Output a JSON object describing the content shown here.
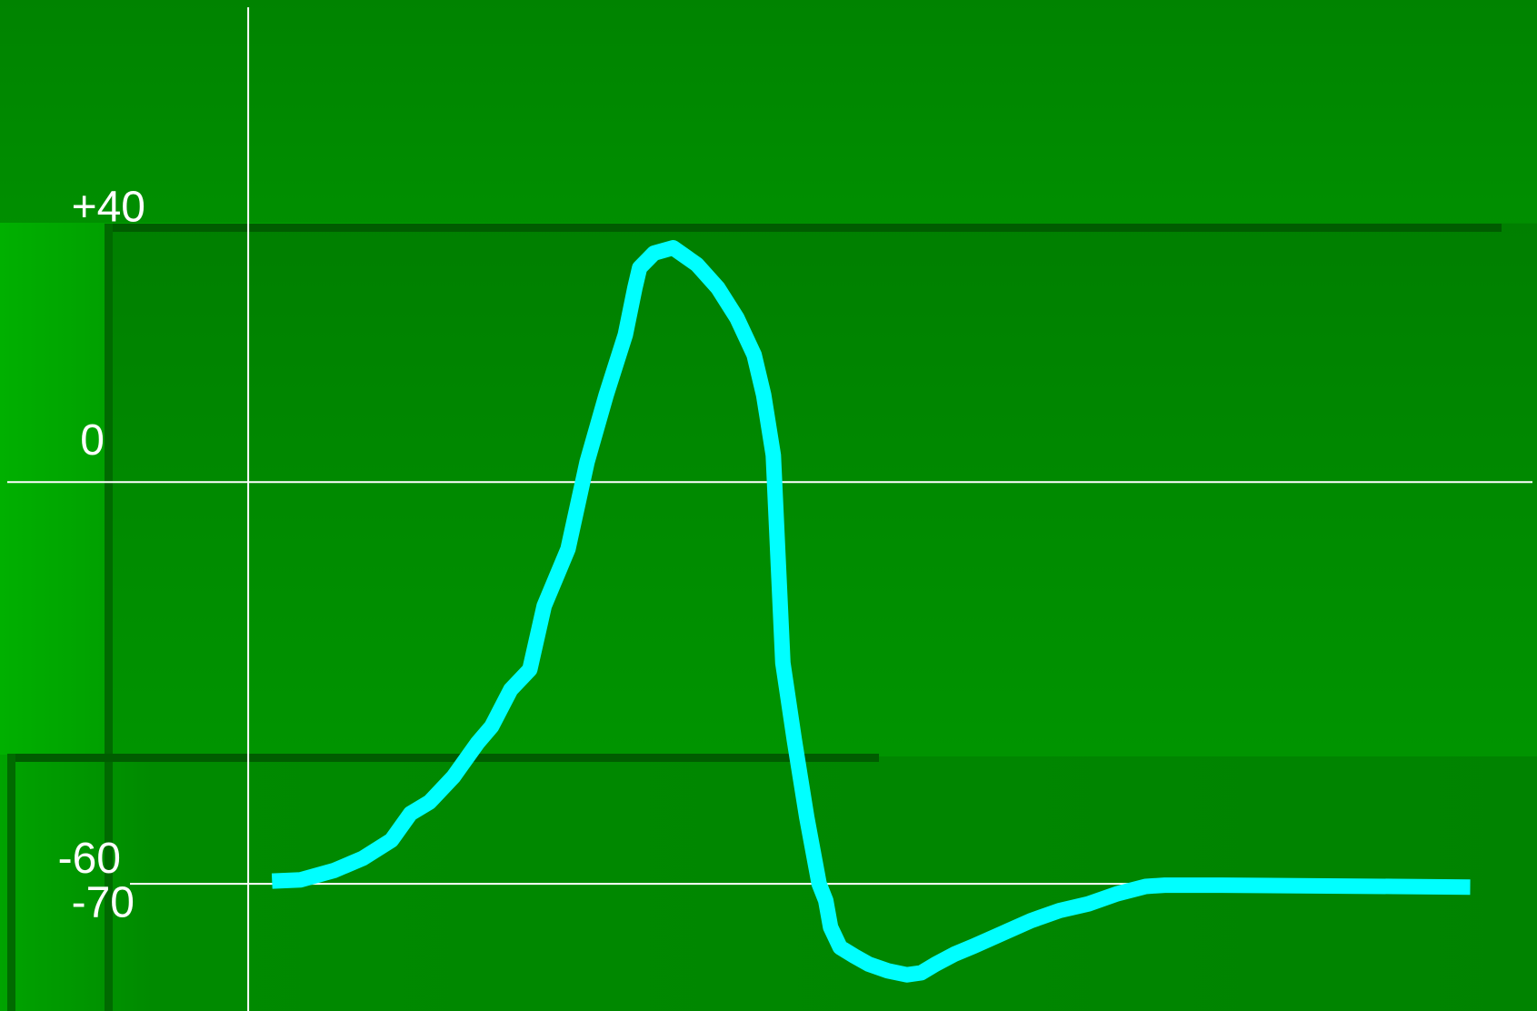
{
  "chart_data": {
    "type": "line",
    "title": "",
    "xlabel": "",
    "ylabel": "",
    "y_ticks": [
      {
        "value": 40,
        "label": "+40"
      },
      {
        "value": 0,
        "label": "0"
      },
      {
        "value": -60,
        "label": "-60"
      },
      {
        "value": -70,
        "label": "-70"
      }
    ],
    "ylim": [
      -79,
      72
    ],
    "xlim": [
      -2.6,
      13.5
    ],
    "reference_lines": [
      {
        "value": 0
      },
      {
        "value": -60
      }
    ],
    "grid": false,
    "legend": "none",
    "series": [
      {
        "color": "#00ffff",
        "x": [
          0.25,
          0.55,
          0.9,
          1.2,
          1.5,
          1.7,
          1.9,
          2.15,
          2.4,
          2.55,
          2.75,
          2.95,
          3.1,
          3.35,
          3.55,
          3.75,
          3.95,
          4.05,
          4.1,
          4.25,
          4.45,
          4.7,
          4.92,
          5.12,
          5.3,
          5.4,
          5.5,
          5.6,
          5.72,
          5.85,
          5.98,
          6.05,
          6.1,
          6.2,
          6.35,
          6.5,
          6.7,
          6.9,
          7.05,
          7.2,
          7.4,
          7.6,
          7.9,
          8.2,
          8.5,
          8.8,
          9.1,
          9.4,
          9.6,
          9.8,
          10.2,
          11.0,
          12.0,
          12.8
        ],
        "y": [
          -59.6,
          -59.4,
          -58.0,
          -56.2,
          -53.5,
          -49.5,
          -47.8,
          -44.0,
          -39.0,
          -36.5,
          -31.0,
          -28.0,
          -18.5,
          -10.0,
          3.0,
          13.0,
          22.0,
          29.0,
          32.0,
          34.2,
          35.0,
          32.5,
          29.0,
          24.5,
          19.0,
          13.0,
          4.0,
          -27.0,
          -38.5,
          -50.0,
          -60.0,
          -62.5,
          -66.5,
          -69.5,
          -70.8,
          -72.0,
          -73.0,
          -73.6,
          -73.3,
          -72.0,
          -70.5,
          -69.3,
          -67.4,
          -65.5,
          -64.0,
          -63.0,
          -61.5,
          -60.4,
          -60.2,
          -60.2,
          -60.2,
          -60.3,
          -60.4,
          -60.5
        ]
      }
    ]
  }
}
